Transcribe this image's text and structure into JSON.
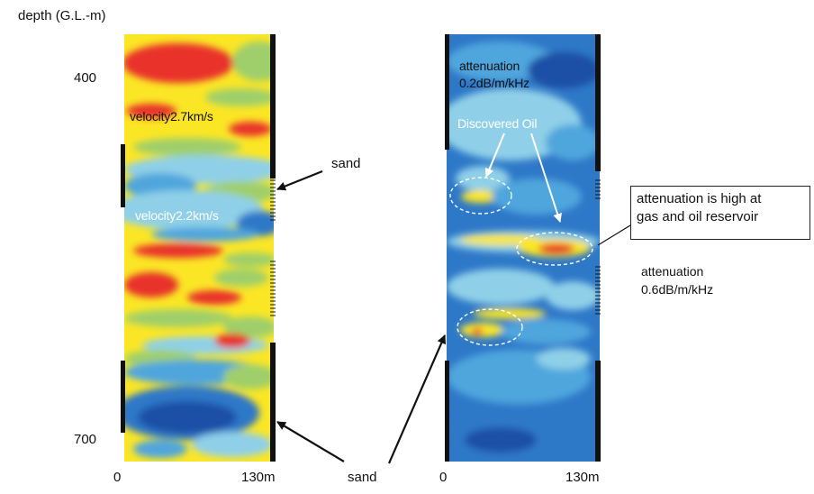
{
  "labels": {
    "depth_axis": "depth (G.L.-m)",
    "depth_top": "400",
    "depth_bottom": "700",
    "left_x_start": "0",
    "left_x_end": "130m",
    "right_x_start": "0",
    "right_x_end": "130m",
    "velocity_high": "velocity2.7km/s",
    "velocity_low": "velocity2.2km/s",
    "sand_right": "sand",
    "sand_bottom": "sand",
    "attenuation_low_line1": "attenuation",
    "attenuation_low_line2": "0.2dB/m/kHz",
    "discovered_oil": "Discovered Oil",
    "callout_line1": "attenuation is high at",
    "callout_line2": "gas and oil reservoir",
    "attenuation_high_line1": "attenuation",
    "attenuation_high_line2": "0.6dB/m/kHz"
  },
  "colors": {
    "red": "#e8312a",
    "yellow": "#fbe625",
    "green": "#9fcf6a",
    "cyan": "#8fd0e8",
    "light_blue": "#4fa6dd",
    "blue": "#2e78c8",
    "dark_blue": "#1d4fa6",
    "border": "#1a1a1a"
  }
}
